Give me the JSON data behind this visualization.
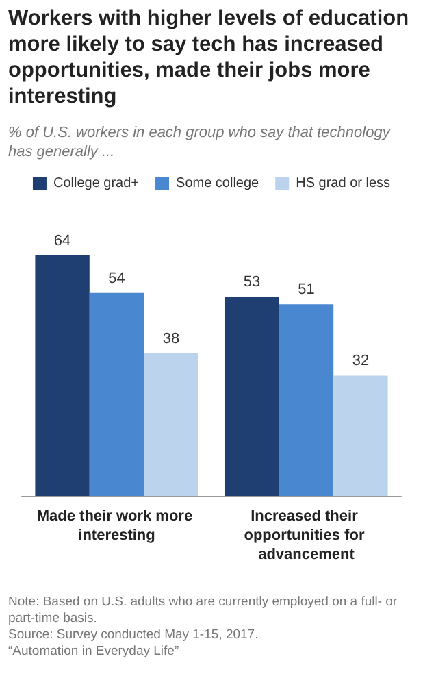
{
  "chart_data": {
    "type": "bar",
    "title": "Workers with higher levels of education more likely to say tech has increased opportunities, made their jobs more interesting",
    "subtitle": "% of U.S. workers in each group who say that technology has generally ...",
    "categories": [
      "Made their work more interesting",
      "Increased their opportunities for advancement"
    ],
    "series": [
      {
        "name": "College grad+",
        "color": "#1f3f73",
        "values": [
          64,
          53
        ]
      },
      {
        "name": "Some college",
        "color": "#4a87d1",
        "values": [
          54,
          51
        ]
      },
      {
        "name": "HS grad or less",
        "color": "#bcd3ee",
        "values": [
          38,
          32
        ]
      }
    ],
    "data_labels": true,
    "legend": "top",
    "grid": false,
    "annotations": [
      "Note: Based on U.S. adults who are currently employed on a full- or part-time basis.",
      "Source: Survey conducted May 1-15, 2017.",
      "“Automation in Everyday Life”"
    ]
  }
}
